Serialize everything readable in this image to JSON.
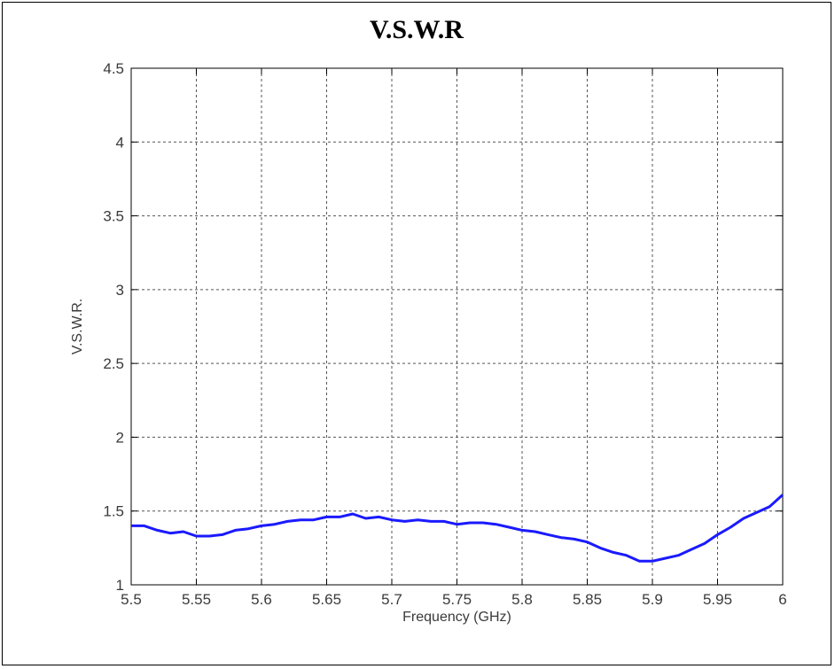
{
  "chart_data": {
    "type": "line",
    "title": "V.S.W.R",
    "xlabel": "Frequency (GHz)",
    "ylabel": "V.S.W.R.",
    "xlim": [
      5.5,
      6.0
    ],
    "ylim": [
      1.0,
      4.5
    ],
    "xticks": [
      "5.5",
      "5.55",
      "5.6",
      "5.65",
      "5.7",
      "5.75",
      "5.8",
      "5.85",
      "5.9",
      "5.95",
      "6"
    ],
    "yticks": [
      "1",
      "1.5",
      "2",
      "2.5",
      "3",
      "3.5",
      "4",
      "4.5"
    ],
    "grid": true,
    "line_color": "#1a1aff",
    "series": [
      {
        "x": [
          5.5,
          5.51,
          5.52,
          5.53,
          5.54,
          5.55,
          5.56,
          5.57,
          5.58,
          5.59,
          5.6,
          5.61,
          5.62,
          5.63,
          5.64,
          5.65,
          5.66,
          5.67,
          5.68,
          5.69,
          5.7,
          5.71,
          5.72,
          5.73,
          5.74,
          5.75,
          5.76,
          5.77,
          5.78,
          5.79,
          5.8,
          5.81,
          5.82,
          5.83,
          5.84,
          5.85,
          5.86,
          5.87,
          5.88,
          5.89,
          5.9,
          5.91,
          5.92,
          5.93,
          5.94,
          5.95,
          5.96,
          5.97,
          5.98,
          5.99,
          6.0
        ],
        "values": [
          1.4,
          1.4,
          1.37,
          1.35,
          1.36,
          1.33,
          1.33,
          1.34,
          1.37,
          1.38,
          1.4,
          1.41,
          1.43,
          1.44,
          1.44,
          1.46,
          1.46,
          1.48,
          1.45,
          1.46,
          1.44,
          1.43,
          1.44,
          1.43,
          1.43,
          1.41,
          1.42,
          1.42,
          1.41,
          1.39,
          1.37,
          1.36,
          1.34,
          1.32,
          1.31,
          1.29,
          1.25,
          1.22,
          1.2,
          1.16,
          1.16,
          1.18,
          1.2,
          1.24,
          1.28,
          1.34,
          1.39,
          1.45,
          1.49,
          1.53,
          1.61
        ]
      }
    ]
  }
}
